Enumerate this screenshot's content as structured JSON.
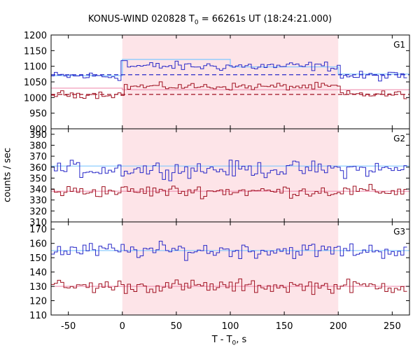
{
  "chart_data": {
    "type": "line",
    "title_main": "KONUS-WIND 020828 T",
    "title_sub": "0",
    "title_rest": " = 66261s UT (18:24:21.000)",
    "xlabel_main": "T - T",
    "xlabel_sub": "0",
    "xlabel_rest": ", s",
    "ylabel": "counts / sec",
    "xlim": [
      -66,
      266
    ],
    "xticks": [
      -50,
      0,
      50,
      100,
      150,
      200,
      250
    ],
    "highlight_interval": [
      0,
      200
    ],
    "bin_width": 2.944,
    "colors": {
      "high_series": "#2828c8",
      "low_series": "#a01020",
      "high_background": "#80c8ff",
      "low_background": "#f090b0",
      "highlight": "#fde4e8"
    },
    "panels": [
      {
        "label": "G1",
        "ylim": [
          900,
          1200
        ],
        "yticks": [
          900,
          950,
          1000,
          1050,
          1100,
          1150,
          1200
        ],
        "high": {
          "mean_pre": 1068,
          "mean_in": 1100,
          "mean_post": 1068,
          "amp": 22,
          "spike": [
            0,
            1118
          ]
        },
        "low": {
          "mean_pre": 1010,
          "mean_in": 1035,
          "mean_post": 1010,
          "amp": 17
        },
        "high_bg_segments": [
          [
            -66,
            1070
          ],
          [
            0,
            1070
          ],
          [
            -1,
            1122
          ],
          [
            100,
            1098
          ],
          [
            200,
            1075
          ]
        ],
        "low_bg_segments": [
          [
            -66,
            1030
          ],
          [
            0,
            1030
          ],
          [
            0,
            1025
          ],
          [
            200,
            1025
          ]
        ],
        "high_dashed": 1073,
        "low_dashed": 1010
      },
      {
        "label": "G2",
        "ylim": [
          310,
          395
        ],
        "yticks": [
          310,
          320,
          330,
          340,
          350,
          360,
          370,
          380,
          390
        ],
        "high": {
          "mean_in": 358,
          "amp": 11
        },
        "low": {
          "mean_in": 338,
          "amp": 8
        },
        "high_bg": 361,
        "low_bg": 338
      },
      {
        "label": "G3",
        "ylim": [
          110,
          175
        ],
        "yticks": [
          110,
          120,
          130,
          140,
          150,
          160,
          170
        ],
        "high": {
          "mean_in": 155,
          "amp": 8
        },
        "low": {
          "mean_in": 130,
          "amp": 7
        },
        "high_bg": 155,
        "low_bg": 130
      }
    ]
  }
}
